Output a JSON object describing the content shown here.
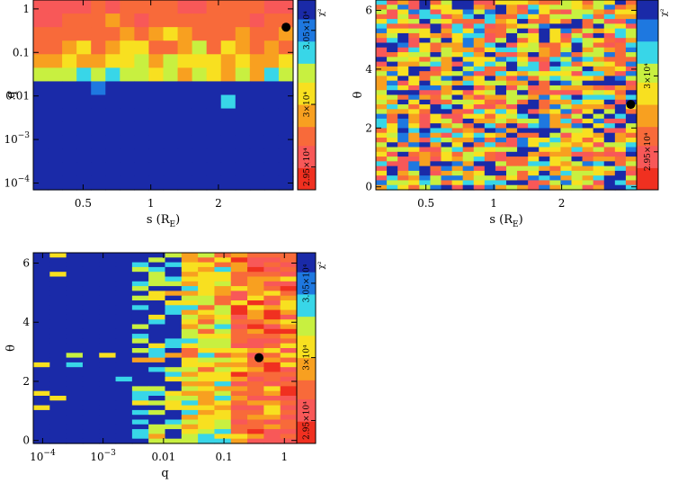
{
  "chart_data": [
    {
      "type": "heatmap",
      "id": "s_q",
      "xlabel": "s (R",
      "xlabel_sub": "E",
      "xlabel_close": ")",
      "ylabel": "q",
      "xscale": "log",
      "yscale": "log",
      "xlim": [
        0.3,
        4.3
      ],
      "ylim": [
        7e-05,
        1.6
      ],
      "x_ticks": [
        {
          "v": 0.5,
          "label": "0.5"
        },
        {
          "v": 1,
          "label": "1"
        },
        {
          "v": 2,
          "label": "2"
        }
      ],
      "y_ticks": [
        {
          "v": 0.0001,
          "base": "10",
          "exp": "−4"
        },
        {
          "v": 0.001,
          "base": "10",
          "exp": "−3"
        },
        {
          "v": 0.01,
          "label": "0.01"
        },
        {
          "v": 0.1,
          "label": "0.1"
        },
        {
          "v": 1,
          "label": "1"
        }
      ],
      "ncols": 18,
      "nrows": 14,
      "grid_rows_top_to_bottom": [
        "HHHHGHGGGGHHGGGGHH",
        "HHGGGFGHGGGGGGGHGG",
        "GGGGGGFGFEFGGGFGGF",
        "GGFEGFEEGGFDGEFGFG",
        "FFEFFEEDFDEEEFEFFE",
        "DDDCDCDDEDFDEFDFCD",
        "AAAABAAAAAAAAAAAAA",
        "AAAAAAAAAAAAACAAAA",
        "AAAAAAAAAAAAAAAAAA",
        "AAAAAAAAAAAAAAAAAA",
        "AAAAAAAAAAAAAAAAAA",
        "AAAAAAAAAAAAAAAAAA",
        "AAAAAAAAAAAAAAAAAA",
        "AAAAAAAAAAAAAAAAAA"
      ],
      "marker": {
        "x": 4.0,
        "y": 0.38
      },
      "colorbar_label": "χ²",
      "colorbar_ticks": [
        {
          "v": 0.12,
          "label": "2.95×10⁴"
        },
        {
          "v": 0.45,
          "label": "3×10⁴"
        },
        {
          "v": 0.84,
          "label": "3.05×10⁴"
        }
      ]
    },
    {
      "type": "heatmap",
      "id": "s_theta",
      "xlabel": "s (R",
      "xlabel_sub": "E",
      "xlabel_close": ")",
      "ylabel": "θ",
      "xscale": "log",
      "yscale": "linear",
      "xlim": [
        0.3,
        4.3
      ],
      "ylim": [
        -0.1,
        6.35
      ],
      "x_ticks": [
        {
          "v": 0.5,
          "label": "0.5"
        },
        {
          "v": 1,
          "label": "1"
        },
        {
          "v": 2,
          "label": "2"
        }
      ],
      "y_ticks": [
        {
          "v": 0,
          "label": "0"
        },
        {
          "v": 2,
          "label": "2"
        },
        {
          "v": 4,
          "label": "4"
        },
        {
          "v": 6,
          "label": "6"
        }
      ],
      "ncols": 24,
      "nrows": 40,
      "seed": 7,
      "marker": {
        "x": 4.05,
        "y": 2.8
      },
      "colorbar_label": "χ²",
      "colorbar_ticks": [
        {
          "v": 0.2,
          "label": "2.95×10⁴"
        },
        {
          "v": 0.6,
          "label": "3×10⁴"
        }
      ]
    },
    {
      "type": "heatmap",
      "id": "q_theta",
      "xlabel": "q",
      "ylabel": "θ",
      "xscale": "log",
      "yscale": "linear",
      "xlim": [
        7e-05,
        1.6
      ],
      "ylim": [
        -0.1,
        6.35
      ],
      "x_ticks": [
        {
          "v": 0.0001,
          "base": "10",
          "exp": "−4"
        },
        {
          "v": 0.001,
          "base": "10",
          "exp": "−3"
        },
        {
          "v": 0.01,
          "label": "0.01"
        },
        {
          "v": 0.1,
          "label": "0.1"
        },
        {
          "v": 1,
          "label": "1"
        }
      ],
      "y_ticks": [
        {
          "v": 0,
          "label": "0"
        },
        {
          "v": 2,
          "label": "2"
        },
        {
          "v": 4,
          "label": "4"
        },
        {
          "v": 6,
          "label": "6"
        }
      ],
      "ncols": 16,
      "nrows": 40,
      "seed": 19,
      "marker": {
        "x": 0.38,
        "y": 2.8
      },
      "colorbar_label": "χ²",
      "colorbar_ticks": [
        {
          "v": 0.12,
          "label": "2.95×10⁴"
        },
        {
          "v": 0.45,
          "label": "3×10⁴"
        },
        {
          "v": 0.84,
          "label": "3.05×10⁴"
        }
      ]
    }
  ],
  "colors": {
    "A": "#1a2aa8",
    "B": "#1e78e0",
    "C": "#38d6e8",
    "D": "#c8f040",
    "E": "#f8e020",
    "F": "#f8a020",
    "G": "#f86a3a",
    "H": "#f85858",
    "I": "#f03020"
  }
}
